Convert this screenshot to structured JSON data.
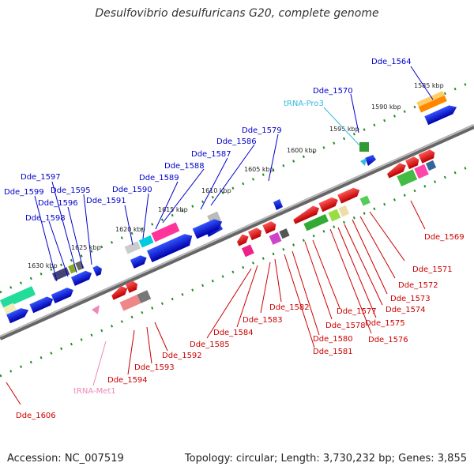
{
  "title": "Desulfovibrio desulfuricans G20, complete genome",
  "footer": {
    "accession": "Accession: NC_007519",
    "topology": "Topology: circular; Length: 3,730,232 bp; Genes: 3,855"
  },
  "colors": {
    "top_strand_label": "#0000cc",
    "bottom_strand_label": "#cc0000",
    "trna_top": "#33bbdd",
    "trna_bottom": "#ee88bb",
    "scale_dots": "#228b22",
    "backbone": "#888888"
  },
  "scale_ticks": [
    "1585 kbp",
    "1590 kbp",
    "1595 kbp",
    "1600 kbp",
    "1605 kbp",
    "1610 kbp",
    "1615 kbp",
    "1620 kbp",
    "1625 kbp",
    "1630 kbp"
  ],
  "top_labels": [
    "Dde_1564",
    "Dde_1570",
    "tRNA-Pro3",
    "Dde_1579",
    "Dde_1586",
    "Dde_1587",
    "Dde_1588",
    "Dde_1589",
    "Dde_1590",
    "Dde_1591",
    "Dde_1595",
    "Dde_1596",
    "Dde_1597",
    "Dde_1598",
    "Dde_1599"
  ],
  "bottom_labels": [
    "Dde_1569",
    "Dde_1571",
    "Dde_1572",
    "Dde_1573",
    "Dde_1574",
    "Dde_1575",
    "Dde_1576",
    "Dde_1577",
    "Dde_1578",
    "Dde_1580",
    "Dde_1581",
    "Dde_1582",
    "Dde_1583",
    "Dde_1584",
    "Dde_1585",
    "Dde_1592",
    "Dde_1593",
    "Dde_1594",
    "tRNA-Met1",
    "Dde_1606"
  ]
}
